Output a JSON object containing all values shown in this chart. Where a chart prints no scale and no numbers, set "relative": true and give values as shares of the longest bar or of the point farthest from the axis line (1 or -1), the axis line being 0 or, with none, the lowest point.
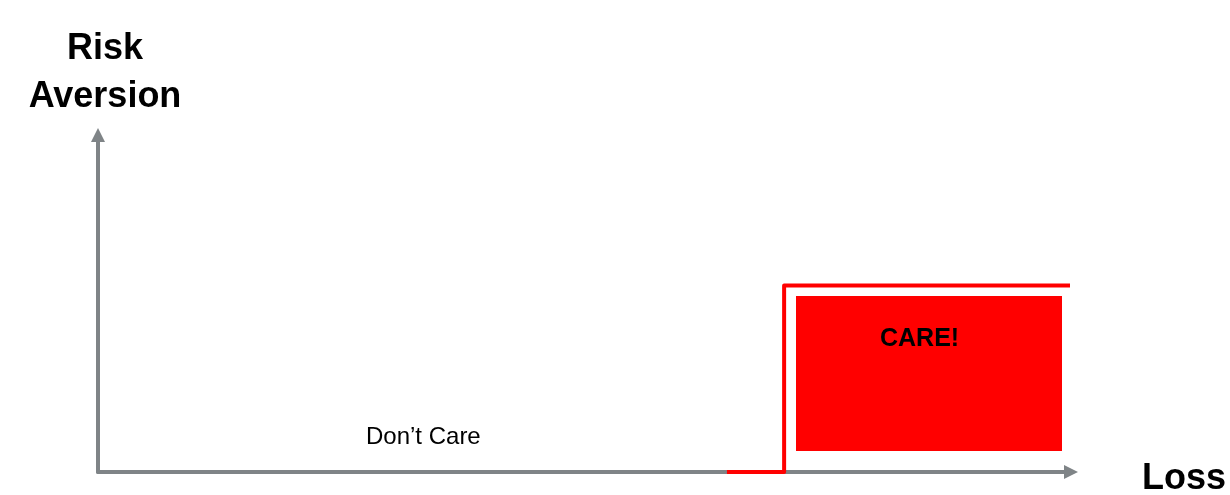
{
  "chart_data": {
    "type": "step",
    "relative": true,
    "xlabel": "Loss",
    "ylabel": "Risk\nAversion",
    "categories": [
      null,
      null,
      null,
      null,
      null,
      null,
      null,
      null,
      null,
      null,
      null,
      null,
      null,
      null,
      null,
      null,
      null,
      null
    ],
    "series": [
      {
        "color": "#ff0000",
        "values": [
          null,
          null,
          null,
          null,
          null,
          null,
          null,
          null,
          null,
          null,
          null,
          0,
          1,
          1,
          1,
          1,
          1,
          1
        ]
      }
    ],
    "annotations": [
      "Don’t Care",
      "CARE!"
    ],
    "grid": false,
    "marker": "none"
  }
}
